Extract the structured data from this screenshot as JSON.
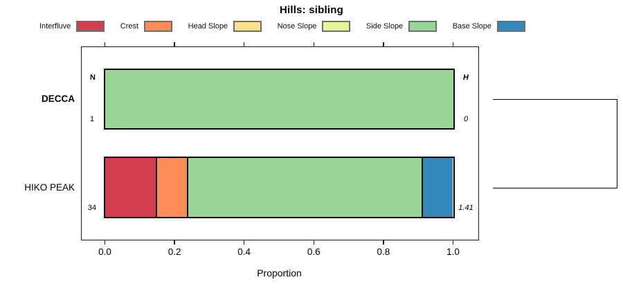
{
  "chart_data": {
    "type": "bar",
    "orientation": "horizontal",
    "stacked": true,
    "title": "Hills: sibling",
    "xlabel": "Proportion",
    "xlim": [
      0,
      1
    ],
    "x_ticks": [
      "0.0",
      "0.2",
      "0.4",
      "0.6",
      "0.8",
      "1.0"
    ],
    "grid": false,
    "legend_position": "top",
    "categories": [
      {
        "name": "Interfluve",
        "color": "#D53E4F"
      },
      {
        "name": "Crest",
        "color": "#FC8D59"
      },
      {
        "name": "Head Slope",
        "color": "#FEE08B"
      },
      {
        "name": "Nose Slope",
        "color": "#E6F598"
      },
      {
        "name": "Side Slope",
        "color": "#99D594"
      },
      {
        "name": "Base Slope",
        "color": "#3288BD"
      }
    ],
    "column_headers": {
      "left": "N",
      "right": "H"
    },
    "rows": [
      {
        "label": "DECCA",
        "emphasis": true,
        "n": "1",
        "h": "0",
        "segments": [
          {
            "category": "Side Slope",
            "value": 1.0
          }
        ]
      },
      {
        "label": "HIKO PEAK",
        "emphasis": false,
        "n": "34",
        "h": "1.41",
        "segments": [
          {
            "category": "Interfluve",
            "value": 0.147
          },
          {
            "category": "Crest",
            "value": 0.088
          },
          {
            "category": "Side Slope",
            "value": 0.677
          },
          {
            "category": "Base Slope",
            "value": 0.088
          }
        ]
      }
    ],
    "sibling_connector": {
      "connects": [
        "DECCA",
        "HIKO PEAK"
      ]
    }
  }
}
